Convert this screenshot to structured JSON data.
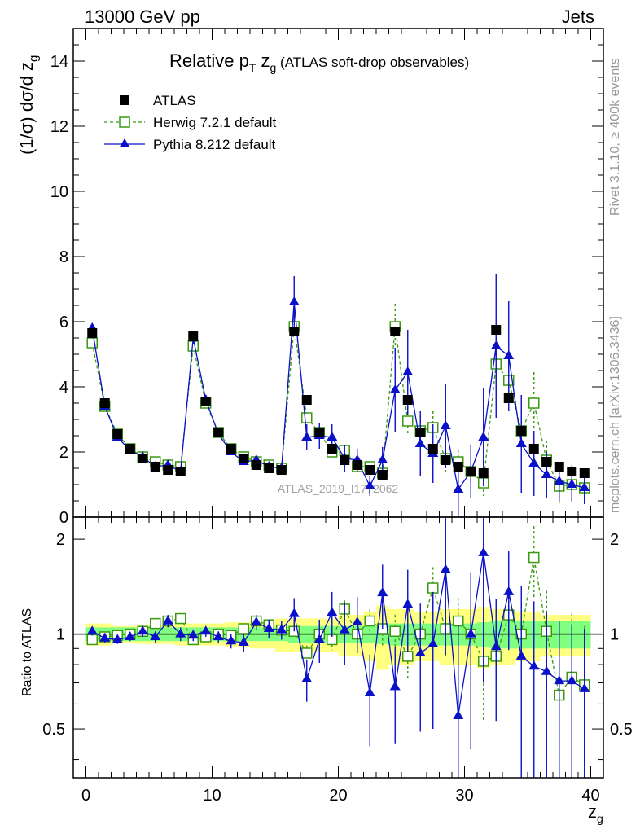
{
  "header": {
    "left": "13000 GeV pp",
    "right": "Jets"
  },
  "side_text": {
    "rivet": "Rivet 3.1.10, ≥ 400k events",
    "mcplots": "mcplots.cern.ch [arXiv:1306.3436]"
  },
  "watermark": "ATLAS_2019_I1772062",
  "colors": {
    "atlas": "#000000",
    "herwig": "#3a9a10",
    "pythia": "#0a10c8",
    "band_outer": "#ffff80",
    "band_inner": "#80ff80"
  },
  "chart_data": [
    {
      "type": "scatter",
      "title_parts": {
        "pre": "Relative p",
        "sub1": "T",
        "mid": " z",
        "sub2": "g",
        "post": " (ATLAS soft-drop observables)"
      },
      "ylabel_parts": {
        "pre": "(1/σ) dσ/d z",
        "sub": "g"
      },
      "xlim": [
        -1,
        41
      ],
      "ylim": [
        0,
        15
      ],
      "yticks": [
        0,
        2,
        4,
        6,
        8,
        10,
        12,
        14
      ],
      "xticks": [
        0,
        10,
        20,
        30,
        40
      ],
      "legend": {
        "position": "top-left",
        "entries": [
          {
            "label": "ATLAS",
            "marker": "filled-square"
          },
          {
            "label": "Herwig 7.2.1 default",
            "marker": "open-square-dashed"
          },
          {
            "label": "Pythia 8.212 default",
            "marker": "filled-triangle"
          }
        ]
      },
      "x": [
        0.5,
        1.5,
        2.5,
        3.5,
        4.5,
        5.5,
        6.5,
        7.5,
        8.5,
        9.5,
        10.5,
        11.5,
        12.5,
        13.5,
        14.5,
        15.5,
        16.5,
        17.5,
        18.5,
        19.5,
        20.5,
        21.5,
        22.5,
        23.5,
        24.5,
        25.5,
        26.5,
        27.5,
        28.5,
        29.5,
        30.5,
        31.5,
        32.5,
        33.5,
        34.5,
        35.5,
        36.5,
        37.5,
        38.5,
        39.5
      ],
      "series": [
        {
          "name": "ATLAS",
          "values": [
            5.65,
            3.5,
            2.55,
            2.1,
            1.8,
            1.55,
            1.45,
            1.4,
            5.55,
            3.55,
            2.6,
            2.1,
            1.8,
            1.6,
            1.5,
            1.45,
            5.7,
            3.6,
            2.6,
            2.1,
            1.75,
            1.6,
            1.45,
            1.3,
            5.7,
            3.6,
            2.6,
            2.1,
            1.75,
            1.55,
            1.4,
            1.35,
            5.75,
            3.65,
            2.65,
            2.1,
            1.7,
            1.55,
            1.4,
            1.35
          ]
        },
        {
          "name": "Herwig 7.2.1 default",
          "values": [
            5.35,
            3.4,
            2.55,
            2.1,
            1.85,
            1.7,
            1.6,
            1.55,
            5.25,
            3.5,
            2.6,
            2.1,
            1.85,
            1.7,
            1.6,
            1.5,
            5.85,
            3.05,
            2.6,
            2.0,
            2.05,
            1.55,
            1.55,
            1.35,
            5.85,
            2.95,
            2.65,
            2.75,
            1.8,
            1.7,
            1.4,
            1.05,
            4.7,
            4.2,
            2.65,
            3.5,
            1.75,
            0.95,
            1.0,
            0.9
          ],
          "errors": [
            0.08,
            0.06,
            0.05,
            0.04,
            0.04,
            0.04,
            0.04,
            0.04,
            0.1,
            0.07,
            0.06,
            0.05,
            0.05,
            0.05,
            0.05,
            0.05,
            0.2,
            0.15,
            0.15,
            0.15,
            0.15,
            0.15,
            0.15,
            0.15,
            0.7,
            0.45,
            0.45,
            0.5,
            0.4,
            0.35,
            0.35,
            0.4,
            0.8,
            0.6,
            0.6,
            0.95,
            0.6,
            0.6,
            0.6,
            0.5
          ]
        },
        {
          "name": "Pythia 8.212 default",
          "values": [
            5.8,
            3.4,
            2.45,
            2.05,
            1.85,
            1.55,
            1.6,
            1.4,
            5.5,
            3.6,
            2.55,
            2.0,
            1.7,
            1.75,
            1.55,
            1.5,
            6.6,
            2.45,
            2.5,
            2.45,
            1.8,
            1.75,
            0.95,
            1.75,
            3.9,
            4.45,
            2.25,
            1.95,
            2.8,
            0.85,
            1.4,
            2.45,
            5.25,
            4.95,
            2.25,
            1.65,
            1.3,
            1.1,
            1.0,
            0.9
          ],
          "errors": [
            0.15,
            0.1,
            0.08,
            0.07,
            0.07,
            0.07,
            0.07,
            0.07,
            0.2,
            0.15,
            0.1,
            0.1,
            0.1,
            0.1,
            0.1,
            0.1,
            0.8,
            0.4,
            0.4,
            0.4,
            0.4,
            0.35,
            0.3,
            0.4,
            1.3,
            1.3,
            1.0,
            0.9,
            1.3,
            0.8,
            0.8,
            1.5,
            2.2,
            1.7,
            1.5,
            1.0,
            0.7,
            0.6,
            0.5,
            0.5
          ]
        }
      ]
    },
    {
      "type": "scatter",
      "ylabel": "Ratio to ATLAS",
      "xlabel_parts": {
        "pre": "z",
        "sub": "g"
      },
      "xlim": [
        -1,
        41
      ],
      "ylim": [
        0.35,
        2.35
      ],
      "yticks_major": [
        0.5,
        1,
        2
      ],
      "xticks": [
        0,
        10,
        20,
        30,
        40
      ],
      "x": [
        0.5,
        1.5,
        2.5,
        3.5,
        4.5,
        5.5,
        6.5,
        7.5,
        8.5,
        9.5,
        10.5,
        11.5,
        12.5,
        13.5,
        14.5,
        15.5,
        16.5,
        17.5,
        18.5,
        19.5,
        20.5,
        21.5,
        22.5,
        23.5,
        24.5,
        25.5,
        26.5,
        27.5,
        28.5,
        29.5,
        30.5,
        31.5,
        32.5,
        33.5,
        34.5,
        35.5,
        36.5,
        37.5,
        38.5,
        39.5
      ],
      "band_inner": [
        0.05,
        0.05,
        0.05,
        0.05,
        0.05,
        0.05,
        0.05,
        0.05,
        0.05,
        0.05,
        0.05,
        0.05,
        0.05,
        0.05,
        0.05,
        0.05,
        0.06,
        0.06,
        0.06,
        0.06,
        0.06,
        0.06,
        0.06,
        0.07,
        0.08,
        0.08,
        0.08,
        0.08,
        0.08,
        0.08,
        0.08,
        0.09,
        0.1,
        0.1,
        0.1,
        0.1,
        0.1,
        0.1,
        0.1,
        0.1
      ],
      "band_outer": [
        0.08,
        0.08,
        0.06,
        0.06,
        0.07,
        0.07,
        0.07,
        0.08,
        0.08,
        0.08,
        0.08,
        0.09,
        0.09,
        0.1,
        0.1,
        0.12,
        0.12,
        0.12,
        0.12,
        0.12,
        0.15,
        0.15,
        0.18,
        0.23,
        0.2,
        0.2,
        0.18,
        0.18,
        0.2,
        0.2,
        0.2,
        0.22,
        0.2,
        0.2,
        0.18,
        0.18,
        0.15,
        0.15,
        0.15,
        0.15
      ],
      "series": [
        {
          "name": "Herwig 7.2.1 default",
          "values": [
            0.96,
            0.98,
            0.99,
            1.0,
            1.02,
            1.08,
            1.1,
            1.12,
            0.96,
            0.98,
            1.0,
            0.99,
            1.04,
            1.1,
            1.07,
            1.03,
            1.02,
            0.87,
            1.0,
            0.96,
            1.2,
            1.0,
            1.1,
            1.04,
            1.02,
            0.85,
            1.0,
            1.4,
            1.04,
            1.1,
            1.0,
            0.82,
            0.85,
            1.15,
            1.0,
            1.75,
            1.02,
            0.64,
            0.73,
            0.69
          ],
          "errors": [
            0.015,
            0.015,
            0.015,
            0.015,
            0.015,
            0.02,
            0.02,
            0.02,
            0.02,
            0.02,
            0.02,
            0.03,
            0.03,
            0.03,
            0.03,
            0.03,
            0.04,
            0.05,
            0.05,
            0.07,
            0.08,
            0.1,
            0.1,
            0.12,
            0.13,
            0.13,
            0.17,
            0.23,
            0.2,
            0.2,
            0.23,
            0.29,
            0.14,
            0.17,
            0.23,
            0.45,
            0.35,
            0.39,
            0.43,
            0.37
          ]
        },
        {
          "name": "Pythia 8.212 default",
          "values": [
            1.02,
            0.97,
            0.96,
            0.98,
            1.02,
            0.98,
            1.1,
            1.0,
            0.99,
            1.02,
            0.98,
            0.95,
            0.94,
            1.09,
            1.04,
            1.03,
            1.16,
            0.72,
            0.96,
            1.17,
            1.03,
            1.09,
            0.65,
            1.35,
            0.68,
            1.24,
            0.87,
            0.93,
            1.6,
            0.55,
            1.0,
            1.81,
            0.91,
            1.36,
            0.85,
            0.79,
            0.76,
            0.71,
            0.71,
            0.67
          ],
          "errors": [
            0.03,
            0.03,
            0.03,
            0.03,
            0.04,
            0.04,
            0.05,
            0.05,
            0.04,
            0.04,
            0.04,
            0.05,
            0.06,
            0.06,
            0.07,
            0.07,
            0.14,
            0.11,
            0.15,
            0.19,
            0.23,
            0.22,
            0.21,
            0.31,
            0.23,
            0.36,
            0.38,
            0.43,
            0.74,
            0.52,
            0.57,
            1.11,
            0.38,
            0.47,
            0.57,
            0.48,
            0.41,
            0.39,
            0.36,
            0.37
          ]
        }
      ]
    }
  ]
}
